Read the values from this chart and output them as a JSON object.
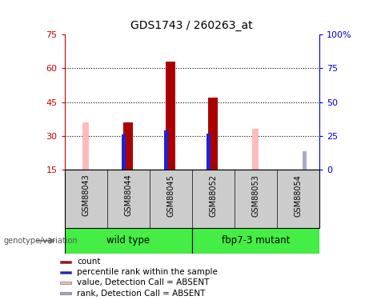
{
  "title": "GDS1743 / 260263_at",
  "samples": [
    "GSM88043",
    "GSM88044",
    "GSM88045",
    "GSM88052",
    "GSM88053",
    "GSM88054"
  ],
  "group_labels": [
    "wild type",
    "fbp7-3 mutant"
  ],
  "count_values": [
    null,
    36,
    63,
    47,
    null,
    null
  ],
  "count_color": "#aa0000",
  "percentile_values": [
    null,
    30,
    32,
    30.5,
    null,
    null
  ],
  "percentile_color": "#2222cc",
  "absent_value_values": [
    36,
    null,
    null,
    null,
    33,
    14
  ],
  "absent_value_color": "#ffbbbb",
  "absent_rank_values": [
    null,
    null,
    null,
    null,
    null,
    23
  ],
  "absent_rank_color": "#aaaacc",
  "ylim_left": [
    15,
    75
  ],
  "yticks_left": [
    15,
    30,
    45,
    60,
    75
  ],
  "ytick_labels_left": [
    "15",
    "30",
    "45",
    "60",
    "75"
  ],
  "ylim_right": [
    0,
    100
  ],
  "yticks_right": [
    0,
    25,
    50,
    75,
    100
  ],
  "ytick_labels_right": [
    "0",
    "25",
    "50",
    "75",
    "100%"
  ],
  "hlines": [
    30,
    45,
    60
  ],
  "legend_items": [
    {
      "color": "#aa0000",
      "label": "count"
    },
    {
      "color": "#2222cc",
      "label": "percentile rank within the sample"
    },
    {
      "color": "#ffbbbb",
      "label": "value, Detection Call = ABSENT"
    },
    {
      "color": "#aaaacc",
      "label": "rank, Detection Call = ABSENT"
    }
  ],
  "left_axis_color": "#cc0000",
  "right_axis_color": "#0000cc",
  "tick_area_color": "#cccccc",
  "group_color": "#44ee44"
}
